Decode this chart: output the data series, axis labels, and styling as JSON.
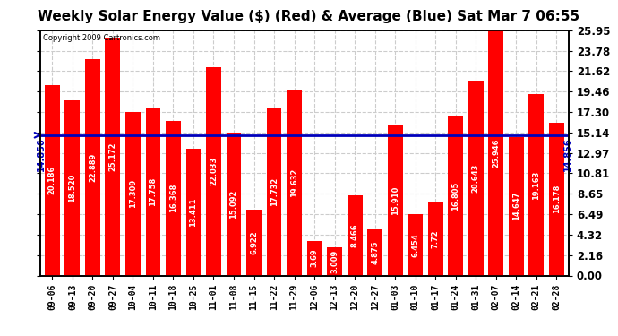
{
  "title": "Weekly Solar Energy Value ($) (Red) & Average (Blue) Sat Mar 7 06:55",
  "copyright": "Copyright 2009 Cartronics.com",
  "categories": [
    "09-06",
    "09-13",
    "09-20",
    "09-27",
    "10-04",
    "10-11",
    "10-18",
    "10-25",
    "11-01",
    "11-08",
    "11-15",
    "11-22",
    "11-29",
    "12-06",
    "12-13",
    "12-20",
    "12-27",
    "01-03",
    "01-10",
    "01-17",
    "01-24",
    "01-31",
    "02-07",
    "02-14",
    "02-21",
    "02-28"
  ],
  "values": [
    20.186,
    18.52,
    22.889,
    25.172,
    17.309,
    17.758,
    16.368,
    13.411,
    22.033,
    15.092,
    6.922,
    17.732,
    19.632,
    3.69,
    3.009,
    8.466,
    4.875,
    15.91,
    6.454,
    7.72,
    16.805,
    20.643,
    25.946,
    14.647,
    19.163,
    16.178
  ],
  "bar_labels": [
    "20.186",
    "18.520",
    "22.889",
    "25.172",
    "17.309",
    "17.758",
    "16.368",
    "13.411",
    "22.033",
    "15.092",
    "6.922",
    "17.732",
    "19.632",
    "3.69",
    "3.009",
    "8.466",
    "4.875",
    "15.910",
    "6.454",
    "7.72",
    "16.805",
    "20.643",
    "25.946",
    "14.647",
    "19.163",
    "16.178"
  ],
  "average": 14.856,
  "bar_color": "#ff0000",
  "avg_line_color": "#0000bb",
  "background_color": "#ffffff",
  "plot_bg_color": "#ffffff",
  "ylim": [
    0.0,
    25.95
  ],
  "yticks": [
    0.0,
    2.16,
    4.32,
    6.49,
    8.65,
    10.81,
    12.97,
    15.14,
    17.3,
    19.46,
    21.62,
    23.78,
    25.95
  ],
  "ytick_labels": [
    "0.00",
    "2.16",
    "4.32",
    "6.49",
    "8.65",
    "10.81",
    "12.97",
    "15.14",
    "17.30",
    "19.46",
    "21.62",
    "23.78",
    "25.95"
  ],
  "grid_color": "#cccccc",
  "title_fontsize": 11,
  "bar_label_fontsize": 6.0,
  "tick_fontsize": 7.0,
  "ytick_fontsize": 8.5,
  "avg_label": "14.856"
}
